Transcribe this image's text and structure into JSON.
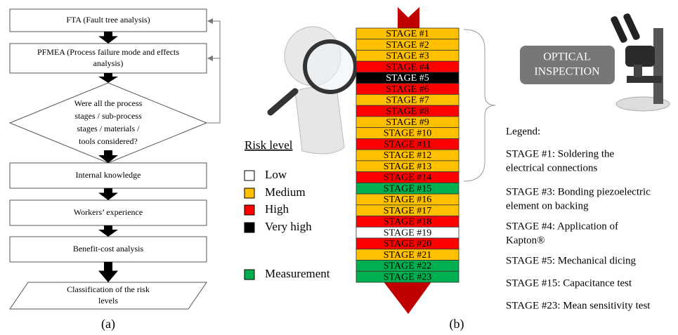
{
  "flowchart": {
    "steps": [
      {
        "lines": [
          "FTA (Fault tree analysis)"
        ]
      },
      {
        "lines": [
          "PFMEA (Process failure mode and effects",
          "analysis)"
        ]
      },
      {
        "lines": [
          "Were all the process",
          "stages / sub-process",
          "stages / materials /",
          "tools  considered?"
        ]
      },
      {
        "lines": [
          "Internal knowledge"
        ]
      },
      {
        "lines": [
          "Workers’ experience"
        ]
      },
      {
        "lines": [
          "Benefit-cost analysis"
        ]
      },
      {
        "lines": [
          "Classification of the risk",
          "levels"
        ]
      }
    ],
    "caption": "(a)"
  },
  "stages": [
    {
      "label": "STAGE #1",
      "color": "#ffc000"
    },
    {
      "label": "STAGE #2",
      "color": "#ffc000"
    },
    {
      "label": "STAGE #3",
      "color": "#ffc000"
    },
    {
      "label": "STAGE #4",
      "color": "#ff0000"
    },
    {
      "label": "STAGE #5",
      "color": "#000000"
    },
    {
      "label": "STAGE #6",
      "color": "#ff0000"
    },
    {
      "label": "STAGE #7",
      "color": "#ffc000"
    },
    {
      "label": "STAGE #8",
      "color": "#ff0000"
    },
    {
      "label": "STAGE #9",
      "color": "#ffc000"
    },
    {
      "label": "STAGE #10",
      "color": "#ffc000"
    },
    {
      "label": "STAGE #11",
      "color": "#ff0000"
    },
    {
      "label": "STAGE #12",
      "color": "#ffc000"
    },
    {
      "label": "STAGE #13",
      "color": "#ffc000"
    },
    {
      "label": "STAGE #14",
      "color": "#ff0000"
    },
    {
      "label": "STAGE #15",
      "color": "#00b050"
    },
    {
      "label": "STAGE #16",
      "color": "#ffc000"
    },
    {
      "label": "STAGE #17",
      "color": "#ffc000"
    },
    {
      "label": "STAGE #18",
      "color": "#ff0000"
    },
    {
      "label": "STAGE #19",
      "color": "#ffffff"
    },
    {
      "label": "STAGE #20",
      "color": "#ff0000"
    },
    {
      "label": "STAGE #21",
      "color": "#ffc000"
    },
    {
      "label": "STAGE #22",
      "color": "#00b050"
    },
    {
      "label": "STAGE #23",
      "color": "#00b050"
    }
  ],
  "optical_inspection": [
    "OPTICAL",
    "INSPECTION"
  ],
  "risk_legend": {
    "title": "Risk level",
    "items": [
      {
        "label": "Low",
        "color": "#ffffff"
      },
      {
        "label": "Medium",
        "color": "#ffc000"
      },
      {
        "label": "High",
        "color": "#ff0000"
      },
      {
        "label": "Very high",
        "color": "#000000"
      },
      {
        "label": "Measurement",
        "color": "#00b050"
      }
    ]
  },
  "legend": {
    "title": "Legend:",
    "entries": [
      [
        "STAGE #1: Soldering the",
        "electrical connections"
      ],
      [
        "STAGE #3: Bonding piezoelectric",
        "element on backing"
      ],
      [
        "STAGE #4: Application of",
        "Kapton®"
      ],
      [
        "STAGE #5: Mechanical dicing"
      ],
      [
        "STAGE #15: Capacitance test"
      ],
      [
        "STAGE #23: Mean sensitivity test"
      ]
    ]
  },
  "caption": "(b)"
}
